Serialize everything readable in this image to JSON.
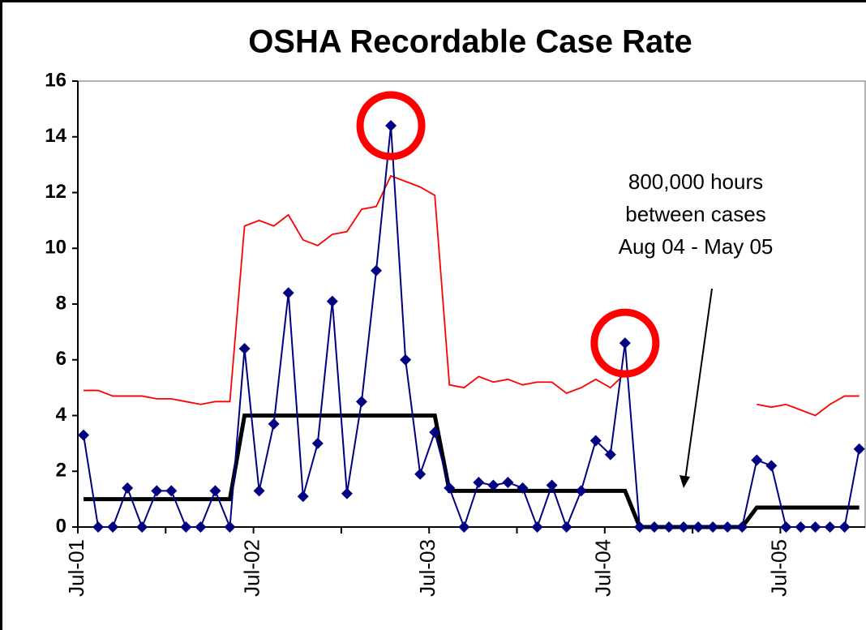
{
  "chart_data": {
    "type": "line",
    "title": "OSHA Recordable Case Rate",
    "categories": [
      "Jul-01",
      null,
      null,
      null,
      null,
      null,
      null,
      null,
      null,
      null,
      null,
      null,
      "Jul-02",
      null,
      null,
      null,
      null,
      null,
      null,
      null,
      null,
      null,
      null,
      null,
      "Jul-03",
      null,
      null,
      null,
      null,
      null,
      null,
      null,
      null,
      null,
      null,
      null,
      "Jul-04",
      null,
      null,
      null,
      null,
      null,
      null,
      null,
      null,
      null,
      null,
      null,
      "Jul-05",
      null,
      null,
      null,
      null,
      null
    ],
    "series": [
      {
        "color": "#ff0000",
        "style": "thin",
        "values": [
          4.9,
          4.9,
          4.7,
          4.7,
          4.7,
          4.6,
          4.6,
          4.5,
          4.4,
          4.5,
          4.5,
          10.8,
          11.0,
          10.8,
          11.2,
          10.3,
          10.1,
          10.5,
          10.6,
          11.4,
          11.5,
          12.6,
          12.4,
          12.2,
          11.9,
          5.1,
          5.0,
          5.4,
          5.2,
          5.3,
          5.1,
          5.2,
          5.2,
          4.8,
          5.0,
          5.3,
          5.0,
          5.5,
          null,
          null,
          null,
          null,
          null,
          null,
          null,
          null,
          4.4,
          4.3,
          4.4,
          4.2,
          4.0,
          4.4,
          4.7,
          4.7
        ]
      },
      {
        "color": "#000000",
        "style": "thick",
        "values": [
          1.0,
          1.0,
          1.0,
          1.0,
          1.0,
          1.0,
          1.0,
          1.0,
          1.0,
          1.0,
          1.0,
          4.0,
          4.0,
          4.0,
          4.0,
          4.0,
          4.0,
          4.0,
          4.0,
          4.0,
          4.0,
          4.0,
          4.0,
          4.0,
          4.0,
          1.3,
          1.3,
          1.3,
          1.3,
          1.3,
          1.3,
          1.3,
          1.3,
          1.3,
          1.3,
          1.3,
          1.3,
          1.3,
          0,
          0,
          0,
          0,
          0,
          0,
          0,
          0,
          0.7,
          0.7,
          0.7,
          0.7,
          0.7,
          0.7,
          0.7,
          0.7
        ]
      },
      {
        "color": "#000080",
        "style": "markers",
        "values": [
          3.3,
          0,
          0,
          1.4,
          0,
          1.3,
          1.3,
          0,
          0,
          1.3,
          0,
          6.4,
          1.3,
          3.7,
          8.4,
          1.1,
          3.0,
          8.1,
          1.2,
          4.5,
          9.2,
          14.4,
          6.0,
          1.9,
          3.4,
          1.4,
          0,
          1.6,
          1.5,
          1.6,
          1.4,
          0,
          1.5,
          0,
          1.3,
          3.1,
          2.6,
          6.6,
          0,
          0,
          0,
          0,
          0,
          0,
          0,
          0,
          2.4,
          2.2,
          0,
          0,
          0,
          0,
          0,
          2.8
        ]
      }
    ],
    "ylim": [
      0,
      16
    ],
    "yticks": [
      0,
      2,
      4,
      6,
      8,
      10,
      12,
      14,
      16
    ],
    "annotation": [
      "800,000 hours",
      "between cases",
      "Aug 04 - May 05"
    ]
  }
}
